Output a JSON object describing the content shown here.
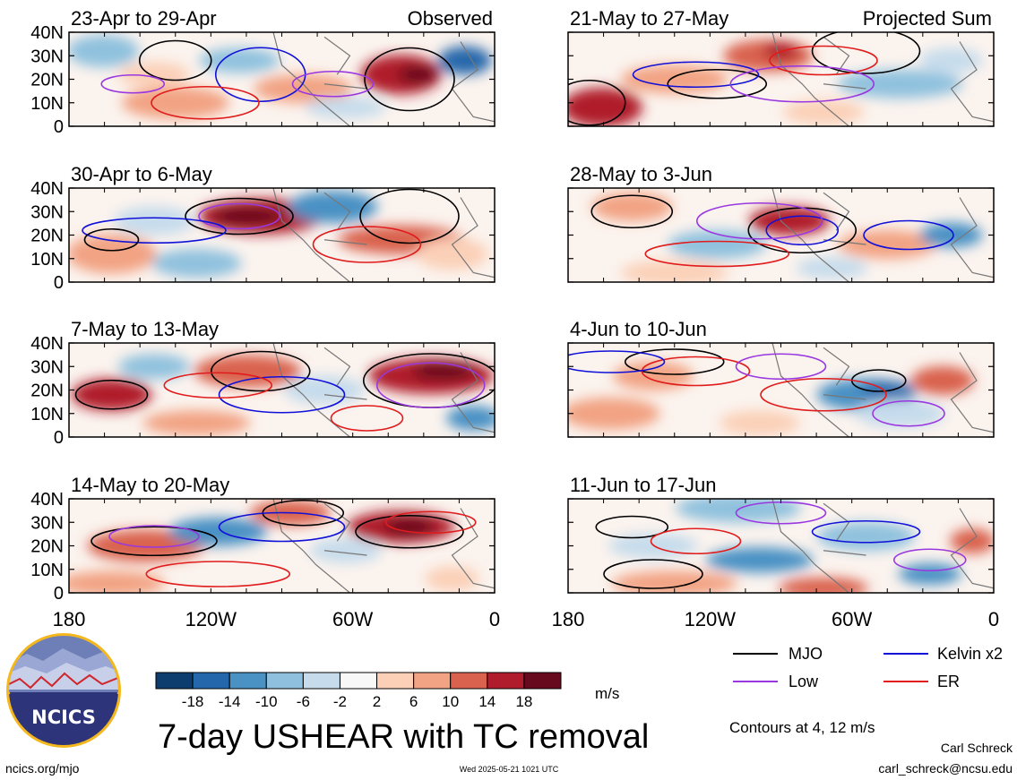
{
  "colors": {
    "mjo": "#000000",
    "kelvin": "#1010d8",
    "low": "#9a38e0",
    "er": "#e01c1c",
    "land": "#777777",
    "logo_circle": "#2d3479",
    "logo_ring": "#f4b81e"
  },
  "left_column": {
    "label": "Observed"
  },
  "right_column": {
    "label": "Projected Sum"
  },
  "panels": [
    {
      "title": "23-Apr to 29-Apr",
      "col": 0,
      "row": 0
    },
    {
      "title": "30-Apr to 6-May",
      "col": 0,
      "row": 1
    },
    {
      "title": "7-May to 13-May",
      "col": 0,
      "row": 2
    },
    {
      "title": "14-May to 20-May",
      "col": 0,
      "row": 3
    },
    {
      "title": "21-May to 27-May",
      "col": 1,
      "row": 0
    },
    {
      "title": "28-May to 3-Jun",
      "col": 1,
      "row": 1
    },
    {
      "title": "4-Jun to 10-Jun",
      "col": 1,
      "row": 2
    },
    {
      "title": "11-Jun to 17-Jun",
      "col": 1,
      "row": 3
    }
  ],
  "lat_ticks": [
    "40N",
    "30N",
    "20N",
    "10N",
    "0"
  ],
  "lon_ticks": [
    "180",
    "120W",
    "60W",
    "0"
  ],
  "colorbar": {
    "ticks": [
      "-18",
      "-14",
      "-10",
      "-6",
      "-2",
      "2",
      "6",
      "10",
      "14",
      "18"
    ],
    "colors": [
      "#0d3d6e",
      "#2567ab",
      "#4a91c4",
      "#8fc1de",
      "#c6dcec",
      "#f8f8f8",
      "#fbd0b7",
      "#f2a383",
      "#d9624e",
      "#b01c2b",
      "#670a1d"
    ],
    "unit": "m/s"
  },
  "legend": [
    {
      "name": "MJO",
      "color": "#000000"
    },
    {
      "name": "Kelvin x2",
      "color": "#1010d8"
    },
    {
      "name": "Low",
      "color": "#9a38e0"
    },
    {
      "name": "ER",
      "color": "#e01c1c"
    }
  ],
  "contours_note": "Contours at 4, 12 m/s",
  "main_title": "7-day USHEAR with TC removal",
  "logo_text": "NCICS",
  "footer": {
    "url": "ncics.org/mjo",
    "timestamp": "Wed 2025-05-21 1021 UTC",
    "author": "Carl Schreck",
    "email": "carl_schreck@ncsu.edu"
  }
}
